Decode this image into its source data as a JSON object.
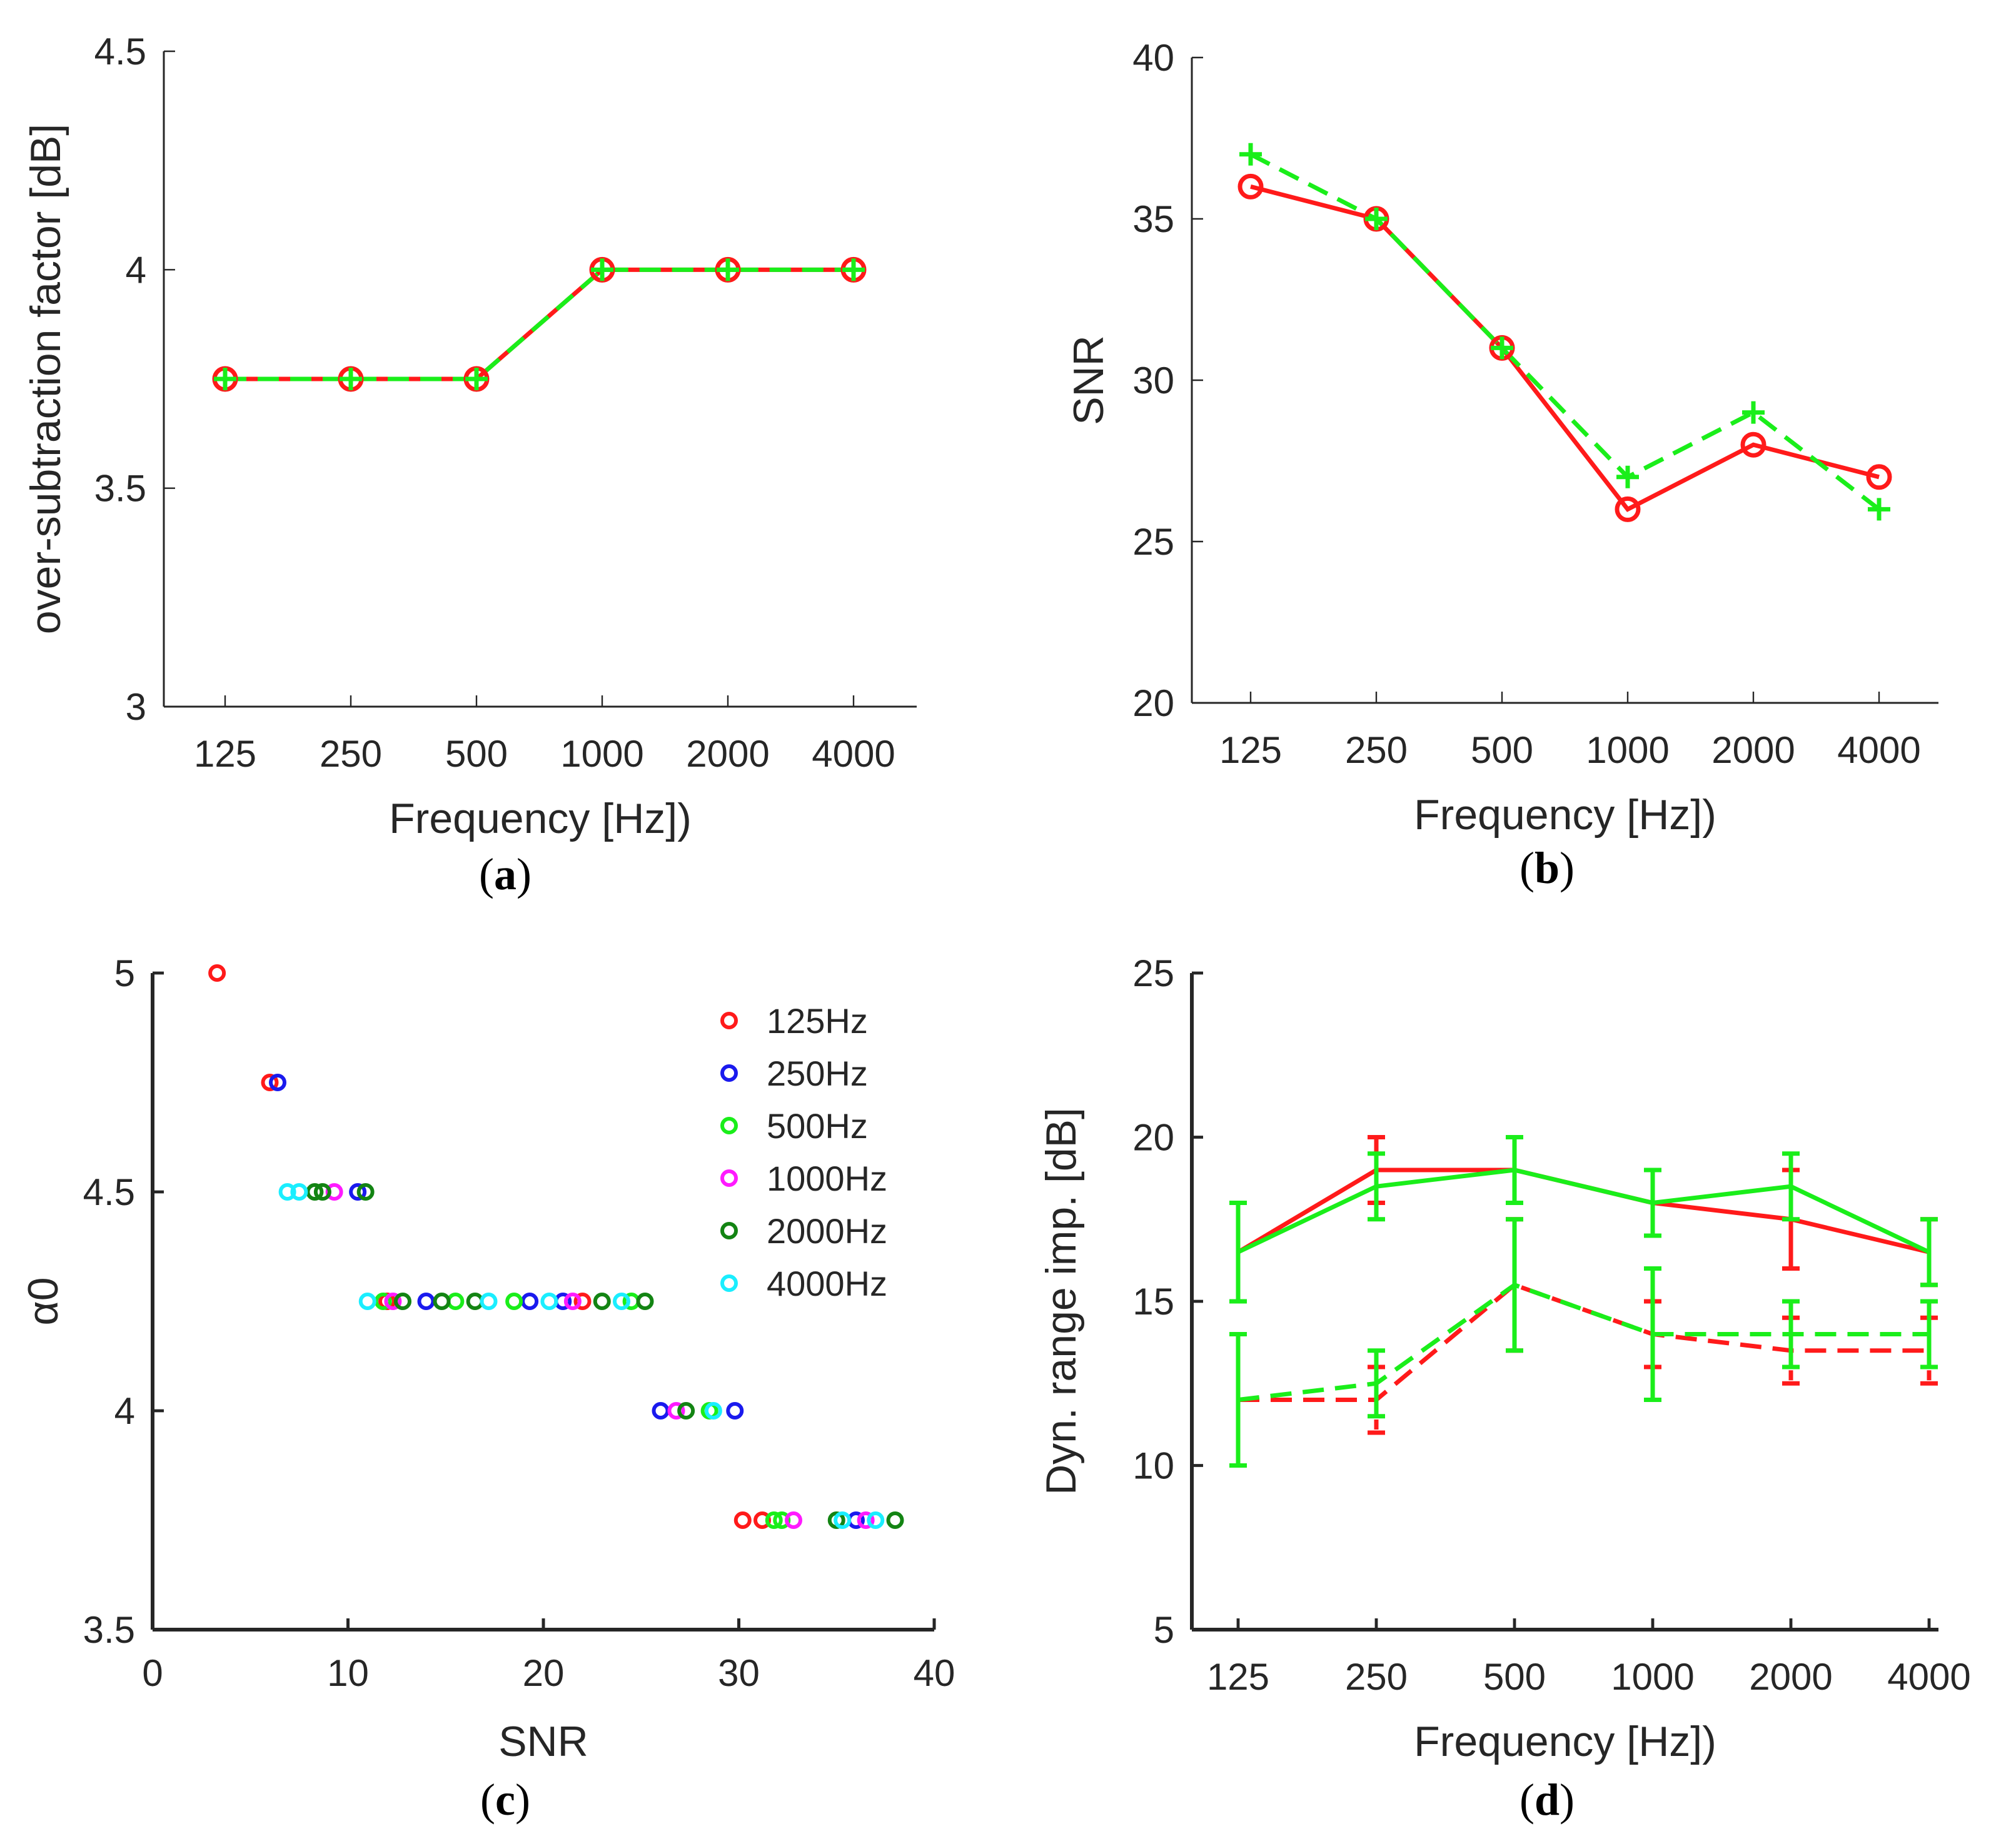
{
  "colors": {
    "red": "#ff1a1a",
    "green": "#1aee1a",
    "blue": "#1a1aee",
    "magenta": "#ff1aff",
    "darkgreen": "#138413",
    "cyan": "#1aeeff",
    "axis": "#262626"
  },
  "chart_data": [
    {
      "id": "a",
      "type": "line",
      "caption": {
        "open": "(",
        "letter": "a",
        "close": ")"
      },
      "xlabel": "Frequency [Hz])",
      "ylabel": "over-subtraction factor [dB]",
      "categories": [
        "125",
        "250",
        "500",
        "1000",
        "2000",
        "4000"
      ],
      "ylim": [
        3,
        4.5
      ],
      "yticks": [
        3,
        3.5,
        4,
        4.5
      ],
      "ytick_labels": [
        "3",
        "3.5",
        "4",
        "4.5"
      ],
      "series": [
        {
          "values": [
            3.75,
            3.75,
            3.75,
            4,
            4,
            4
          ],
          "color": "red",
          "line": "solid",
          "marker": "circle"
        },
        {
          "values": [
            3.75,
            3.75,
            3.75,
            4,
            4,
            4
          ],
          "color": "green",
          "line": "dashed",
          "marker": "plus"
        }
      ]
    },
    {
      "id": "b",
      "type": "line",
      "caption": {
        "open": "(",
        "letter": "b",
        "close": ")"
      },
      "xlabel": "Frequency [Hz])",
      "ylabel": "SNR",
      "categories": [
        "125",
        "250",
        "500",
        "1000",
        "2000",
        "4000"
      ],
      "ylim": [
        20,
        40
      ],
      "yticks": [
        20,
        25,
        30,
        35,
        40
      ],
      "ytick_labels": [
        "20",
        "25",
        "30",
        "35",
        "40"
      ],
      "series": [
        {
          "values": [
            36,
            35,
            31,
            26,
            28,
            27
          ],
          "color": "red",
          "line": "solid",
          "marker": "circle"
        },
        {
          "values": [
            37,
            35,
            31,
            27,
            29,
            26
          ],
          "color": "green",
          "line": "dashed",
          "marker": "plus"
        }
      ]
    },
    {
      "id": "c",
      "type": "scatter",
      "caption": {
        "open": "(",
        "letter": "c",
        "close": ")"
      },
      "xlabel": "SNR",
      "ylabel": "α0",
      "xlim": [
        0,
        40
      ],
      "xticks": [
        0,
        10,
        20,
        30,
        40
      ],
      "xtick_labels": [
        "0",
        "10",
        "20",
        "30",
        "40"
      ],
      "ylim": [
        3.5,
        5
      ],
      "yticks": [
        3.5,
        4,
        4.5,
        5
      ],
      "ytick_labels": [
        "3.5",
        "4",
        "4.5",
        "5"
      ],
      "legend": "top-right",
      "series": [
        {
          "name": "125Hz",
          "color": "red",
          "points": [
            [
              3.3,
              5
            ],
            [
              6,
              4.75
            ],
            [
              12,
              4.25
            ],
            [
              22,
              4.25
            ],
            [
              30.2,
              3.75
            ],
            [
              31.2,
              3.75
            ]
          ]
        },
        {
          "name": "250Hz",
          "color": "blue",
          "points": [
            [
              6.4,
              4.75
            ],
            [
              10.5,
              4.5
            ],
            [
              14,
              4.25
            ],
            [
              19.3,
              4.25
            ],
            [
              21,
              4.25
            ],
            [
              26,
              4
            ],
            [
              29.8,
              4
            ],
            [
              36,
              3.75
            ]
          ]
        },
        {
          "name": "500Hz",
          "color": "green",
          "points": [
            [
              11.8,
              4.25
            ],
            [
              15.5,
              4.25
            ],
            [
              18.5,
              4.25
            ],
            [
              24.5,
              4.25
            ],
            [
              28.5,
              4
            ],
            [
              31.8,
              3.75
            ],
            [
              32.2,
              3.75
            ]
          ]
        },
        {
          "name": "1000Hz",
          "color": "magenta",
          "points": [
            [
              9.3,
              4.5
            ],
            [
              12.3,
              4.25
            ],
            [
              21.5,
              4.25
            ],
            [
              26.8,
              4
            ],
            [
              32.8,
              3.75
            ],
            [
              36.5,
              3.75
            ]
          ]
        },
        {
          "name": "2000Hz",
          "color": "darkgreen",
          "points": [
            [
              8.3,
              4.5
            ],
            [
              8.7,
              4.5
            ],
            [
              10.9,
              4.5
            ],
            [
              12.8,
              4.25
            ],
            [
              14.8,
              4.25
            ],
            [
              16.5,
              4.25
            ],
            [
              23,
              4.25
            ],
            [
              25.2,
              4.25
            ],
            [
              27.3,
              4
            ],
            [
              35,
              3.75
            ],
            [
              38,
              3.75
            ]
          ]
        },
        {
          "name": "4000Hz",
          "color": "cyan",
          "points": [
            [
              6.9,
              4.5
            ],
            [
              7.5,
              4.5
            ],
            [
              11,
              4.25
            ],
            [
              17.2,
              4.25
            ],
            [
              20.3,
              4.25
            ],
            [
              24,
              4.25
            ],
            [
              28.7,
              4
            ],
            [
              35.3,
              3.75
            ],
            [
              37,
              3.75
            ]
          ]
        }
      ]
    },
    {
      "id": "d",
      "type": "line",
      "caption": {
        "open": "(",
        "letter": "d",
        "close": ")"
      },
      "xlabel": "Frequency [Hz])",
      "ylabel": "Dyn. range imp. [dB]",
      "categories": [
        "125",
        "250",
        "500",
        "1000",
        "2000",
        "4000"
      ],
      "ylim": [
        5,
        25
      ],
      "yticks": [
        5,
        10,
        15,
        20,
        25
      ],
      "ytick_labels": [
        "5",
        "10",
        "15",
        "20",
        "25"
      ],
      "series": [
        {
          "values": [
            16.5,
            19,
            19,
            18,
            17.5,
            16.5
          ],
          "errors": [
            1.5,
            1,
            1,
            1,
            1.5,
            1
          ],
          "color": "red",
          "line": "solid"
        },
        {
          "values": [
            16.5,
            18.5,
            19,
            18,
            18.5,
            16.5
          ],
          "errors": [
            1.5,
            1,
            1,
            1,
            1,
            1
          ],
          "color": "green",
          "line": "solid"
        },
        {
          "values": [
            12,
            12,
            15.5,
            14,
            13.5,
            13.5
          ],
          "errors": [
            2,
            1,
            2,
            1,
            1,
            1
          ],
          "color": "red",
          "line": "dashed"
        },
        {
          "values": [
            12,
            12.5,
            15.5,
            14,
            14,
            14
          ],
          "errors": [
            2,
            1,
            2,
            2,
            1,
            1
          ],
          "color": "green",
          "line": "dashed"
        }
      ]
    }
  ]
}
